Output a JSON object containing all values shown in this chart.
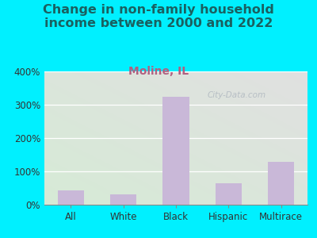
{
  "title": "Change in non-family household\nincome between 2000 and 2022",
  "subtitle": "Moline, IL",
  "categories": [
    "All",
    "White",
    "Black",
    "Hispanic",
    "Multirace"
  ],
  "values": [
    42,
    30,
    325,
    65,
    128
  ],
  "bar_color": "#c9b8d8",
  "title_fontsize": 11.5,
  "subtitle_fontsize": 10,
  "subtitle_color": "#b06080",
  "title_color": "#1a6060",
  "background_outer": "#00f0ff",
  "background_plot_top_left": "#d0ead0",
  "background_plot_top_right": "#d8d8d8",
  "background_plot_bottom": "#d8ecd8",
  "ylim": [
    0,
    400
  ],
  "yticks": [
    0,
    100,
    200,
    300,
    400
  ],
  "ytick_labels": [
    "0%",
    "100%",
    "200%",
    "300%",
    "400%"
  ],
  "watermark": "City-Data.com",
  "watermark_color": "#b0b8c0"
}
